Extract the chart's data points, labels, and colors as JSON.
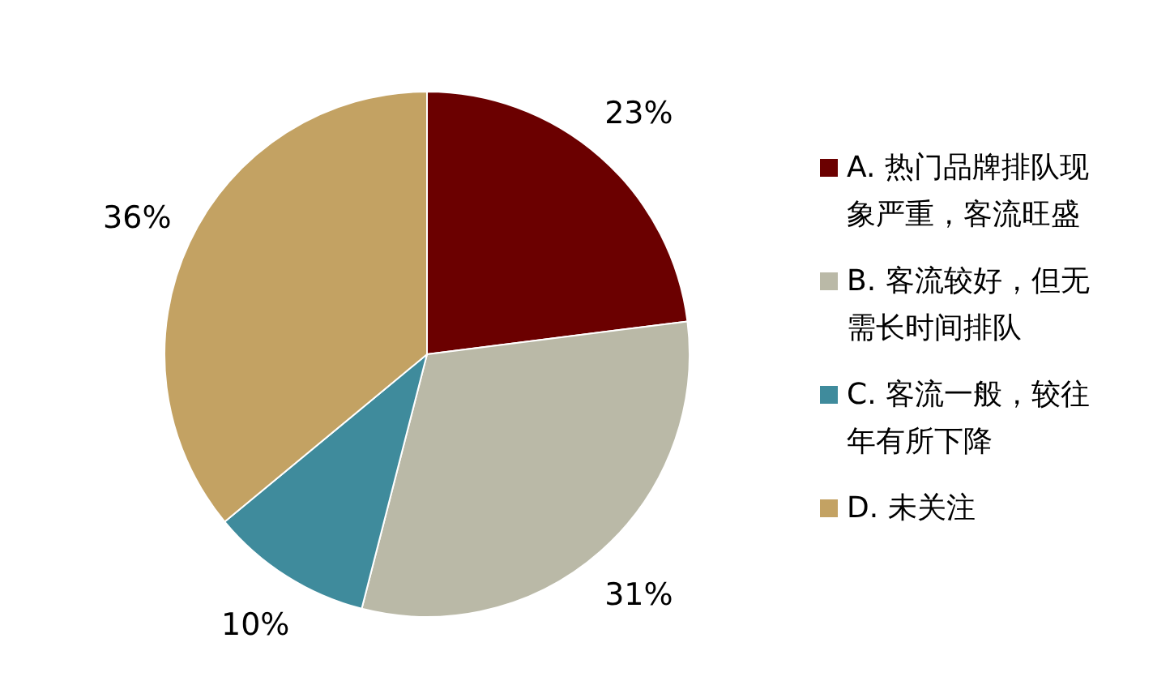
{
  "chart_data": {
    "type": "pie",
    "categories": [
      "A. 热门品牌排队现象严重，客流旺盛",
      "B. 客流较好，但无需长时间排队",
      "C. 客流一般，较往年有所下降",
      "D. 未关注"
    ],
    "values": [
      23,
      31,
      10,
      36
    ],
    "colors": [
      "#6b0000",
      "#bab9a7",
      "#3f8b9c",
      "#c3a263"
    ],
    "value_labels": [
      "23%",
      "31%",
      "10%",
      "36%"
    ],
    "legend": "right"
  }
}
